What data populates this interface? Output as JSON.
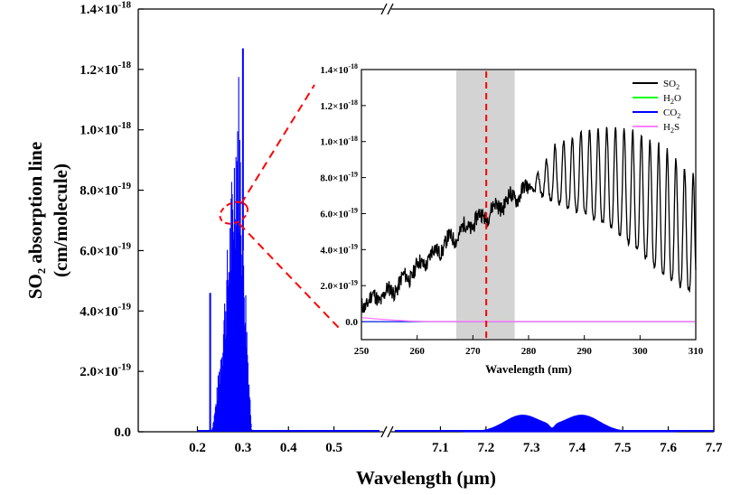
{
  "chart_data": [
    {
      "type": "line",
      "title": "",
      "xlabel": "Wavelength (µm)",
      "ylabel_line1": "SO₂ absorption line",
      "ylabel_line2": "(cm/molecule)",
      "ylim": [
        0,
        1.4e-18
      ],
      "y_ticks": [
        {
          "value": 0,
          "label": "0.0"
        },
        {
          "value": 2e-19,
          "mant": "2.0×10",
          "exp": "-19"
        },
        {
          "value": 4e-19,
          "mant": "4.0×10",
          "exp": "-19"
        },
        {
          "value": 6e-19,
          "mant": "6.0×10",
          "exp": "-19"
        },
        {
          "value": 8e-19,
          "mant": "8.0×10",
          "exp": "-19"
        },
        {
          "value": 1e-18,
          "mant": "1.0×10",
          "exp": "-18"
        },
        {
          "value": 1.2e-18,
          "mant": "1.2×10",
          "exp": "-18"
        },
        {
          "value": 1.4e-18,
          "mant": "1.4×10",
          "exp": "-18"
        }
      ],
      "broken_x_axis": {
        "segment1": {
          "range": [
            0.07,
            0.6
          ],
          "ticks": [
            "0.2",
            "0.3",
            "0.4",
            "0.5"
          ],
          "tick_values": [
            0.2,
            0.3,
            0.4,
            0.5
          ]
        },
        "segment2": {
          "range": [
            7.0,
            7.7
          ],
          "ticks": [
            "7.1",
            "7.2",
            "7.3",
            "7.4",
            "7.5",
            "7.6",
            "7.7"
          ],
          "tick_values": [
            7.1,
            7.2,
            7.3,
            7.4,
            7.5,
            7.6,
            7.7
          ]
        }
      },
      "series": [
        {
          "name": "SO₂ absorption",
          "color": "#0000ff",
          "uv_band": {
            "x_start": 0.23,
            "x_peak": 0.29,
            "x_end": 0.32,
            "peak_value": 1.27e-18,
            "spike_x": 0.228,
            "spike_value": 4.6e-19
          },
          "ir_band": {
            "x_start": 7.15,
            "x_end": 7.62,
            "peaks": [
              {
                "x": 7.28,
                "value": 5.5e-20
              },
              {
                "x": 7.41,
                "value": 5.5e-20
              }
            ],
            "dip_x": 7.345
          }
        }
      ],
      "zoom_region": {
        "x_range": [
          0.25,
          0.31
        ],
        "y_range": [
          6.5e-19,
          8e-19
        ]
      }
    },
    {
      "type": "line",
      "role": "inset",
      "xlabel": "Wavelength (nm)",
      "ylabel": "",
      "xlim": [
        250,
        310
      ],
      "ylim": [
        -1e-19,
        1.4e-18
      ],
      "x_ticks": [
        "250",
        "260",
        "270",
        "280",
        "290",
        "300",
        "310"
      ],
      "x_tick_values": [
        250,
        260,
        270,
        280,
        290,
        300,
        310
      ],
      "y_ticks": [
        {
          "value": 0,
          "label": "0.0"
        },
        {
          "value": 2e-19,
          "mant": "2.0×10",
          "exp": "-19"
        },
        {
          "value": 4e-19,
          "mant": "4.0×10",
          "exp": "-19"
        },
        {
          "value": 6e-19,
          "mant": "6.0×10",
          "exp": "-19"
        },
        {
          "value": 8e-19,
          "mant": "8.0×10",
          "exp": "-19"
        },
        {
          "value": 1e-18,
          "mant": "1.0×10",
          "exp": "-18"
        },
        {
          "value": 1.2e-18,
          "mant": "1.2×10",
          "exp": "-18"
        },
        {
          "value": 1.4e-18,
          "mant": "1.4×10",
          "exp": "-18"
        }
      ],
      "shaded_band": {
        "x_range": [
          267,
          277.5
        ],
        "color": "#d3d3d3"
      },
      "marker_line": {
        "x": 272.4,
        "color": "#ff0000",
        "style": "dashed"
      },
      "legend_position": "top-right",
      "series": [
        {
          "name": "SO2",
          "legend_base": "SO",
          "legend_sub": "2",
          "color": "#000000",
          "envelope": [
            [
              250,
              1e-19
            ],
            [
              255,
              1.6e-19
            ],
            [
              260,
              3e-19
            ],
            [
              265,
              4.3e-19
            ],
            [
              270,
              5.5e-19
            ],
            [
              275,
              6.5e-19
            ],
            [
              280,
              7.4e-19
            ],
            [
              285,
              9.9e-19
            ],
            [
              290,
              1.06e-18
            ],
            [
              295,
              1.08e-18
            ],
            [
              300,
              1.05e-18
            ],
            [
              305,
              9.5e-19
            ],
            [
              310,
              8e-19
            ]
          ],
          "troughs": [
            [
              280,
              7.4e-19
            ],
            [
              285,
              6.6e-19
            ],
            [
              290,
              6e-19
            ],
            [
              295,
              5.2e-19
            ],
            [
              300,
              3.8e-19
            ],
            [
              305,
              2.4e-19
            ],
            [
              310,
              1.5e-19
            ]
          ]
        },
        {
          "name": "H2O",
          "legend_base": "H",
          "legend_sub": "2",
          "legend_tail": "O",
          "color": "#00ff00",
          "values_flat": 0
        },
        {
          "name": "CO2",
          "legend_base": "CO",
          "legend_sub": "2",
          "color": "#0000ff",
          "values_flat": 0
        },
        {
          "name": "H2S",
          "legend_base": "H",
          "legend_sub": "2",
          "legend_tail": "S",
          "color": "#ff80ff",
          "start_value": 2.2e-20,
          "values_flat": 1e-21
        }
      ]
    }
  ]
}
